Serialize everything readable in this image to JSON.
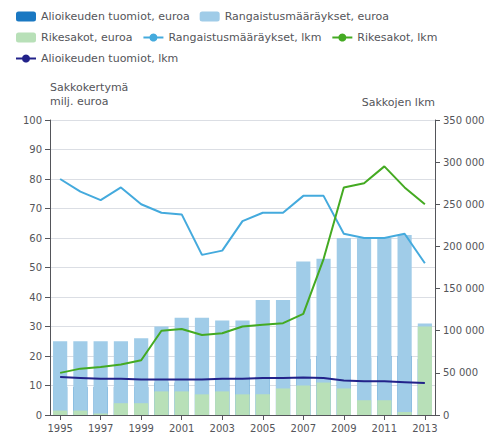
{
  "chart_data": {
    "type": "bar",
    "stacked": true,
    "grid": true,
    "legend": "upper left",
    "ylabel": [
      "Sakkokertymä",
      "milj. euroa"
    ],
    "y2label": "Sakkojen lkm",
    "x": [
      1995,
      1996,
      1997,
      1998,
      1999,
      2000,
      2001,
      2002,
      2003,
      2004,
      2005,
      2006,
      2007,
      2008,
      2009,
      2010,
      2011,
      2012,
      2013
    ],
    "xlim": [
      1994.5,
      2013.5
    ],
    "xticks": [
      1995,
      1997,
      1999,
      2001,
      2003,
      2005,
      2007,
      2009,
      2011,
      2013
    ],
    "ylim": [
      0,
      100
    ],
    "yticks": [
      0,
      10,
      20,
      30,
      40,
      50,
      60,
      70,
      80,
      90,
      100
    ],
    "y2lim": [
      0,
      350000
    ],
    "y2ticks": [
      0,
      {
        "value": 50000,
        "label": "50 000"
      },
      {
        "value": 100000,
        "label": "100 000"
      },
      {
        "value": 150000,
        "label": "150 000"
      },
      {
        "value": 200000,
        "label": "200 000"
      },
      {
        "value": 250000,
        "label": "250 000"
      },
      {
        "value": 300000,
        "label": "300 000"
      },
      {
        "value": 350000,
        "label": "350 000"
      }
    ],
    "series": [
      {
        "name": "Alioikeuden tuomiot, euroa",
        "type": "bar",
        "color": "#1a78c2",
        "values": [
          9.5,
          9.5,
          9.5,
          9.5,
          9.5,
          11,
          11,
          12,
          12,
          13,
          13,
          13,
          19,
          20,
          20,
          19.5,
          20,
          20,
          19
        ]
      },
      {
        "name": "Rangaistusmääräykset, euroa",
        "type": "bar",
        "color": "#a0cce8",
        "values": [
          25,
          25,
          25,
          25,
          26,
          30,
          33,
          33,
          32,
          32,
          39,
          39,
          52,
          53,
          60,
          60,
          60,
          61,
          31
        ]
      },
      {
        "name": "Rikesakot, euroa",
        "type": "bar",
        "color": "#b8e0b8",
        "values": [
          1.5,
          1.5,
          0.5,
          4,
          4,
          8,
          8,
          7,
          8,
          7,
          7,
          9,
          10,
          11,
          9,
          5,
          5,
          1,
          30
        ]
      },
      {
        "name": "Rangaistusmääräykset, lkm",
        "type": "line",
        "axis": "y2",
        "color": "#44aadd",
        "values": [
          280000,
          265000,
          255000,
          270000,
          250000,
          240000,
          238000,
          190000,
          195000,
          230000,
          240000,
          240000,
          260000,
          260000,
          215000,
          210000,
          210000,
          215000,
          180000
        ]
      },
      {
        "name": "Rikesakot, lkm",
        "type": "line",
        "axis": "y2",
        "color": "#44aa22",
        "values": [
          50000,
          55000,
          57000,
          60000,
          65000,
          100000,
          102000,
          95000,
          97000,
          105000,
          107000,
          109000,
          120000,
          185000,
          270000,
          275000,
          295000,
          270000,
          250000
        ]
      },
      {
        "name": "Alioikeuden tuomiot, lkm",
        "type": "line",
        "axis": "y2",
        "color": "#22228a",
        "values": [
          45000,
          44000,
          43000,
          43000,
          42000,
          42000,
          42000,
          42000,
          43000,
          43000,
          44000,
          44000,
          44500,
          44000,
          41000,
          40000,
          40000,
          39000,
          38000
        ]
      }
    ]
  }
}
